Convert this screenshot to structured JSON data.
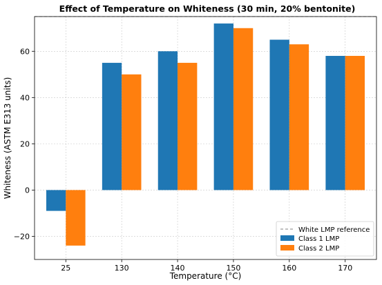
{
  "chart_data": {
    "type": "bar",
    "title": "Effect of Temperature on Whiteness (30 min, 20% bentonite)",
    "xlabel": "Temperature (°C)",
    "ylabel": "Whiteness (ASTM E313 units)",
    "categories": [
      "25",
      "130",
      "140",
      "150",
      "160",
      "170"
    ],
    "series": [
      {
        "name": "Class 1 LMP",
        "color": "#1f77b4",
        "values": [
          -9,
          55,
          60,
          72,
          65,
          58
        ]
      },
      {
        "name": "Class 2 LMP",
        "color": "#ff7f0e",
        "values": [
          -24,
          50,
          55,
          70,
          63,
          58
        ]
      }
    ],
    "reference_line": {
      "name": "White LMP reference",
      "value": 75,
      "color": "#808080",
      "style": "dashed"
    },
    "ylim": [
      -30,
      75
    ],
    "yticks": [
      -20,
      0,
      20,
      40,
      60
    ],
    "grid": true,
    "legend_position": "lower-right"
  }
}
